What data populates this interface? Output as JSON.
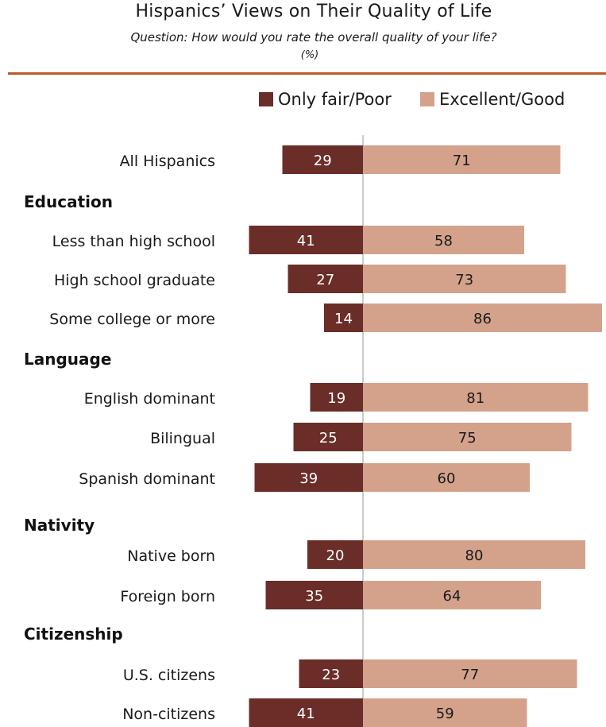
{
  "header": {
    "title": "Hispanics’ Views on Their Quality of Life",
    "subtitle": "Question: How would you rate the overall quality of your life?",
    "unit": "(%)"
  },
  "colors": {
    "negative": "#6b2d28",
    "positive": "#d4a28b",
    "rule": "#b85c2c",
    "axis": "#999999"
  },
  "legend": {
    "negative_label": "Only fair/Poor",
    "positive_label": "Excellent/Good"
  },
  "chart_data": {
    "type": "bar",
    "orientation": "horizontal-diverging",
    "series": [
      {
        "name": "Only fair/Poor",
        "direction": "left"
      },
      {
        "name": "Excellent/Good",
        "direction": "right"
      }
    ],
    "rows": [
      {
        "kind": "item",
        "label": "All Hispanics",
        "neg": 29,
        "pos": 71
      },
      {
        "kind": "group",
        "label": "Education"
      },
      {
        "kind": "item",
        "label": "Less than high school",
        "neg": 41,
        "pos": 58
      },
      {
        "kind": "item",
        "label": "High school graduate",
        "neg": 27,
        "pos": 73
      },
      {
        "kind": "item",
        "label": "Some college or more",
        "neg": 14,
        "pos": 86
      },
      {
        "kind": "group",
        "label": "Language"
      },
      {
        "kind": "item",
        "label": "English dominant",
        "neg": 19,
        "pos": 81
      },
      {
        "kind": "item",
        "label": "Bilingual",
        "neg": 25,
        "pos": 75
      },
      {
        "kind": "item",
        "label": "Spanish dominant",
        "neg": 39,
        "pos": 60
      },
      {
        "kind": "group",
        "label": "Nativity"
      },
      {
        "kind": "item",
        "label": "Native born",
        "neg": 20,
        "pos": 80
      },
      {
        "kind": "item",
        "label": "Foreign born",
        "neg": 35,
        "pos": 64
      },
      {
        "kind": "group",
        "label": "Citizenship"
      },
      {
        "kind": "item",
        "label": "U.S. citizens",
        "neg": 23,
        "pos": 77
      },
      {
        "kind": "item",
        "label": "Non-citizens",
        "neg": 41,
        "pos": 59
      }
    ]
  }
}
